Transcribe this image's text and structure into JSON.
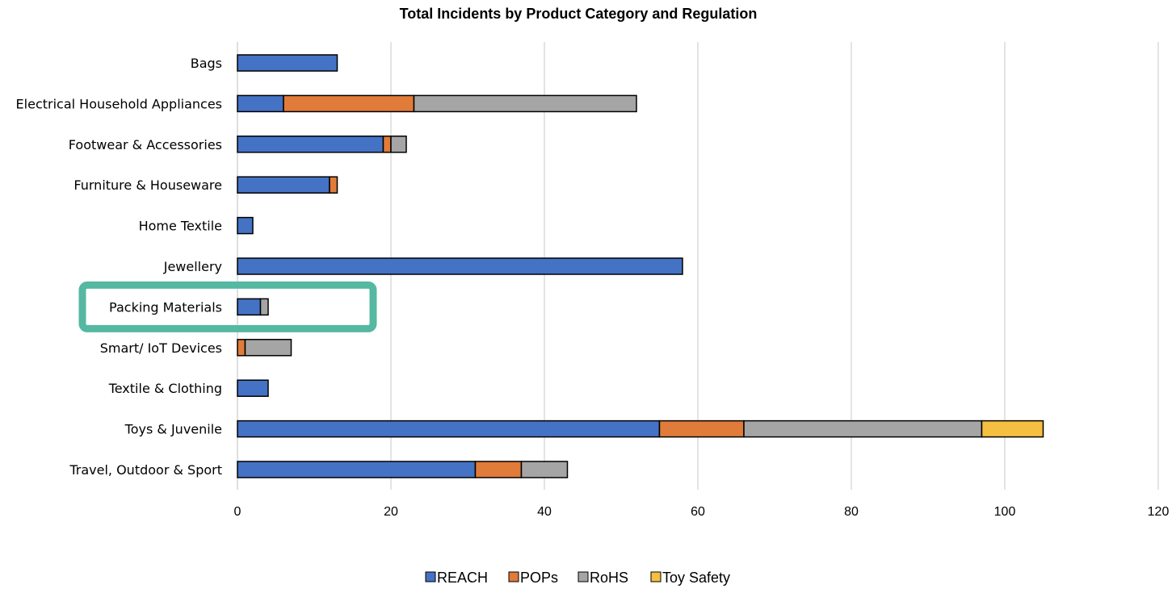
{
  "chart_data": {
    "type": "bar",
    "orientation": "horizontal",
    "stacked": true,
    "title": "Total Incidents by Product Category and Regulation",
    "xlabel": "",
    "ylabel": "",
    "xlim": [
      0,
      120
    ],
    "x_ticks": [
      0,
      20,
      40,
      60,
      80,
      100,
      120
    ],
    "grid": "vertical",
    "legend_position": "bottom",
    "categories": [
      "Bags",
      "Electrical Household Appliances",
      "Footwear & Accessories",
      "Furniture & Houseware",
      "Home Textile",
      "Jewellery",
      "Packing Materials",
      "Smart/ IoT Devices",
      "Textile & Clothing",
      "Toys & Juvenile",
      "Travel, Outdoor & Sport"
    ],
    "series": [
      {
        "name": "REACH",
        "color": "#4472c4",
        "values": [
          13,
          6,
          19,
          12,
          2,
          58,
          3,
          0,
          4,
          55,
          31
        ]
      },
      {
        "name": "POPs",
        "color": "#e07b39",
        "values": [
          0,
          17,
          1,
          1,
          0,
          0,
          0,
          1,
          0,
          11,
          6
        ]
      },
      {
        "name": "RoHS",
        "color": "#a5a5a5",
        "values": [
          0,
          29,
          2,
          0,
          0,
          0,
          1,
          6,
          0,
          31,
          6
        ]
      },
      {
        "name": "Toy Safety",
        "color": "#f5bf41",
        "values": [
          0,
          0,
          0,
          0,
          0,
          0,
          0,
          0,
          0,
          8,
          0
        ]
      }
    ],
    "highlighted_category": "Packing Materials",
    "highlight_color": "#55b8a0"
  }
}
